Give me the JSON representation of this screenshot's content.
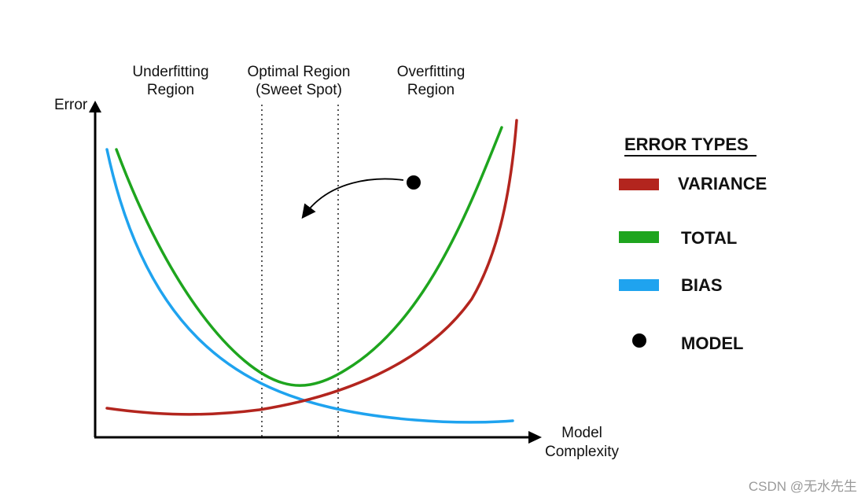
{
  "axes": {
    "y_label": "Error",
    "x_label_line1": "Model",
    "x_label_line2": "Complexity"
  },
  "regions": [
    {
      "line1": "Underfitting",
      "line2": "Region"
    },
    {
      "line1": "Optimal Region",
      "line2": "(Sweet Spot)"
    },
    {
      "line1": "Overfitting",
      "line2": "Region"
    }
  ],
  "legend": {
    "title": "ERROR TYPES",
    "items": [
      {
        "label": "VARIANCE",
        "color": "#b3251e",
        "marker": "bar"
      },
      {
        "label": "TOTAL",
        "color": "#1ea51e",
        "marker": "bar"
      },
      {
        "label": "BIAS",
        "color": "#1fa3ef",
        "marker": "bar"
      },
      {
        "label": "MODEL",
        "color": "#000000",
        "marker": "dot"
      }
    ]
  },
  "curves": {
    "bias_color": "#1fa3ef",
    "total_color": "#1ea51e",
    "variance_color": "#b3251e"
  },
  "watermark": "CSDN @无水先生"
}
